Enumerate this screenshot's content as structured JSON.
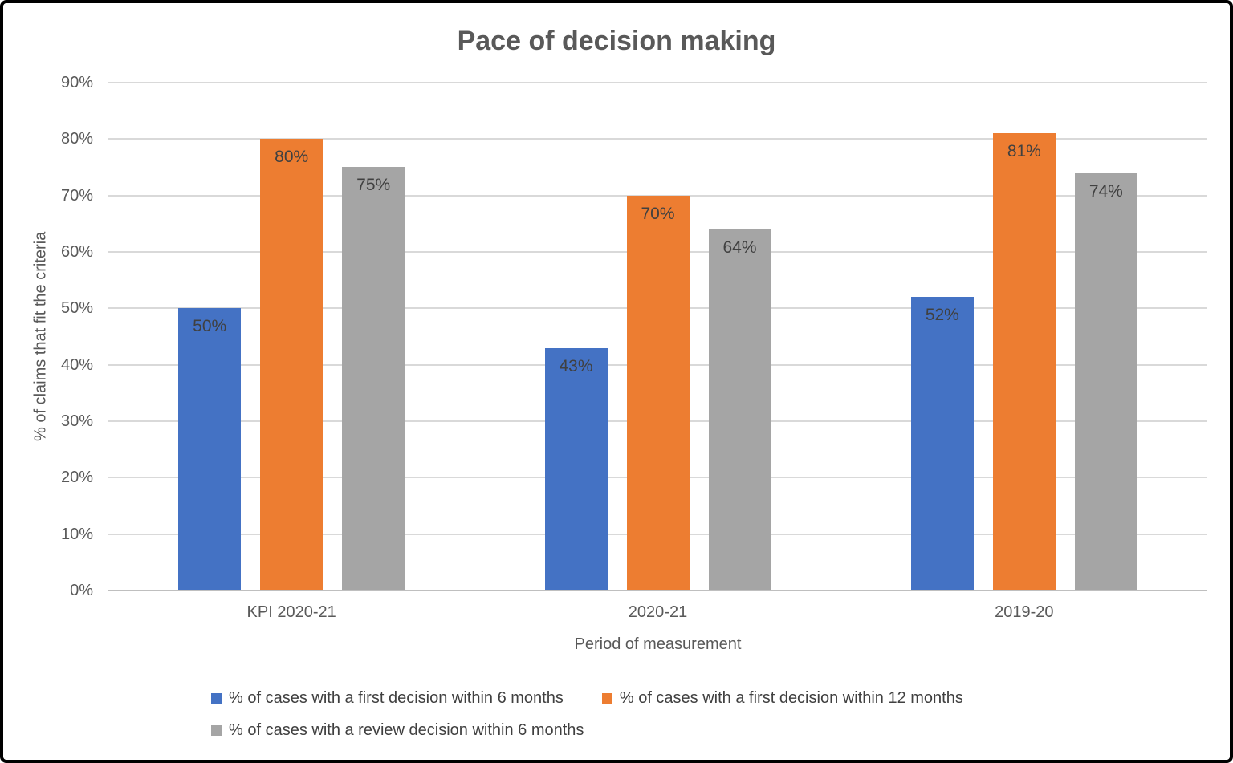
{
  "frame": {
    "border_color": "#000000",
    "background": "#ffffff"
  },
  "chart_data": {
    "type": "bar",
    "title": "Pace of decision making",
    "xlabel": "Period of measurement",
    "ylabel": "% of claims that fit the criteria",
    "categories": [
      "KPI 2020-21",
      "2020-21",
      "2019-20"
    ],
    "series": [
      {
        "name": "% of cases with a first decision within 6 months",
        "color": "#4472C4",
        "values": [
          50,
          43,
          52
        ],
        "labels": [
          "50%",
          "43%",
          "52%"
        ]
      },
      {
        "name": "% of cases with a first decision within 12 months",
        "color": "#ED7D31",
        "values": [
          80,
          70,
          81
        ],
        "labels": [
          "80%",
          "70%",
          "81%"
        ]
      },
      {
        "name": "% of cases with a review decision within 6 months",
        "color": "#A5A5A5",
        "values": [
          75,
          64,
          74
        ],
        "labels": [
          "75%",
          "64%",
          "74%"
        ]
      }
    ],
    "ylim": [
      0,
      90
    ],
    "y_ticks": [
      {
        "value": 0,
        "label": "0%"
      },
      {
        "value": 10,
        "label": "10%"
      },
      {
        "value": 20,
        "label": "20%"
      },
      {
        "value": 30,
        "label": "30%"
      },
      {
        "value": 40,
        "label": "40%"
      },
      {
        "value": 50,
        "label": "50%"
      },
      {
        "value": 60,
        "label": "60%"
      },
      {
        "value": 70,
        "label": "70%"
      },
      {
        "value": 80,
        "label": "80%"
      },
      {
        "value": 90,
        "label": "90%"
      }
    ],
    "grid": true,
    "legend_position": "bottom",
    "colors": {
      "title_text": "#595959",
      "axis_text": "#595959",
      "data_label_text": "#404040",
      "gridline": "#D9D9D9",
      "axis_line": "#BFBFBF"
    }
  }
}
